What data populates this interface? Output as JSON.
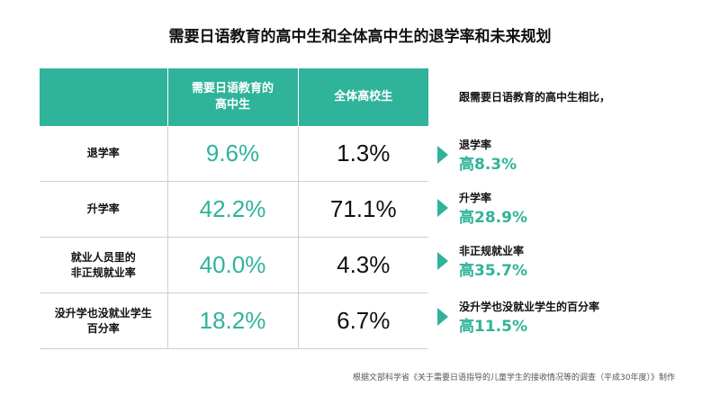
{
  "title": "需要日语教育的高中生和全体高中生的退学率和未来规划",
  "chart_data": {
    "type": "table",
    "columns": [
      "",
      "需要日语教育的\n高中生",
      "全体高校生"
    ],
    "rows": [
      {
        "label": "退学率",
        "needs_japanese": "9.6%",
        "all": "1.3%"
      },
      {
        "label": "升学率",
        "needs_japanese": "42.2%",
        "all": "71.1%"
      },
      {
        "label": "就业人员里的\n非正规就业率",
        "needs_japanese": "40.0%",
        "all": "4.3%"
      },
      {
        "label": "没升学也没就业学生\n百分率",
        "needs_japanese": "18.2%",
        "all": "6.7%"
      }
    ],
    "values_needs_japanese": [
      9.6,
      42.2,
      40.0,
      18.2
    ],
    "values_all": [
      1.3,
      71.1,
      4.3,
      6.7
    ]
  },
  "comparison": {
    "heading": "跟需要日语教育的高中生相比，",
    "items": [
      {
        "label": "退学率",
        "diff": "高8.3%"
      },
      {
        "label": "升学率",
        "diff": "高28.9%"
      },
      {
        "label": "非正规就业率",
        "diff": "高35.7%"
      },
      {
        "label": "没升学也没就业学生的百分率",
        "diff": "高11.5%"
      }
    ]
  },
  "source": "根据文部科学省《关于需要日语指导的儿童学生的接收情况等的调查（平成30年度）》制作",
  "colors": {
    "accent": "#2fb39a",
    "text": "#111111",
    "grid": "#cfcfcf"
  }
}
